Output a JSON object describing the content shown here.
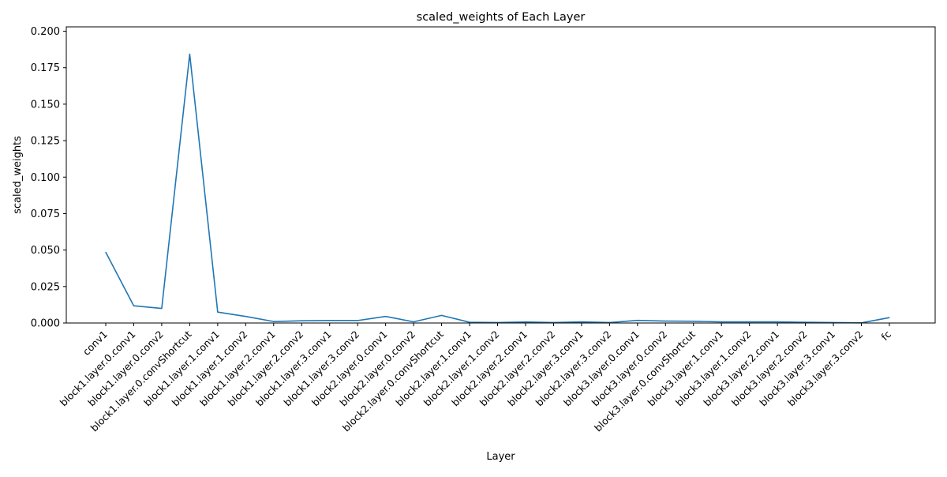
{
  "chart_data": {
    "type": "line",
    "title": "scaled_weights of Each Layer",
    "xlabel": "Layer",
    "ylabel": "scaled_weights",
    "ylim": [
      0,
      0.203
    ],
    "yticks": [
      0.0,
      0.025,
      0.05,
      0.075,
      0.1,
      0.125,
      0.15,
      0.175,
      0.2
    ],
    "ytick_labels": [
      "0.000",
      "0.025",
      "0.050",
      "0.075",
      "0.100",
      "0.125",
      "0.150",
      "0.175",
      "0.200"
    ],
    "grid": false,
    "legend": "none",
    "line_color": "#1f77b4",
    "categories": [
      "conv1",
      "block1.layer.0.conv1",
      "block1.layer.0.conv2",
      "block1.layer.0.convShortcut",
      "block1.layer.1.conv1",
      "block1.layer.1.conv2",
      "block1.layer.2.conv1",
      "block1.layer.2.conv2",
      "block1.layer.3.conv1",
      "block1.layer.3.conv2",
      "block2.layer.0.conv1",
      "block2.layer.0.conv2",
      "block2.layer.0.convShortcut",
      "block2.layer.1.conv1",
      "block2.layer.1.conv2",
      "block2.layer.2.conv1",
      "block2.layer.2.conv2",
      "block2.layer.3.conv1",
      "block2.layer.3.conv2",
      "block3.layer.0.conv1",
      "block3.layer.0.conv2",
      "block3.layer.0.convShortcut",
      "block3.layer.1.conv1",
      "block3.layer.1.conv2",
      "block3.layer.2.conv1",
      "block3.layer.2.conv2",
      "block3.layer.3.conv1",
      "block3.layer.3.conv2",
      "fc"
    ],
    "values": [
      0.0485,
      0.0118,
      0.01,
      0.1843,
      0.0075,
      0.0045,
      0.001,
      0.0015,
      0.0017,
      0.0017,
      0.0045,
      0.0008,
      0.0052,
      0.0005,
      0.0003,
      0.0007,
      0.0003,
      0.0008,
      0.0003,
      0.0018,
      0.0013,
      0.0012,
      0.0008,
      0.0008,
      0.0008,
      0.0005,
      0.0003,
      0.0001,
      0.0037
    ]
  }
}
